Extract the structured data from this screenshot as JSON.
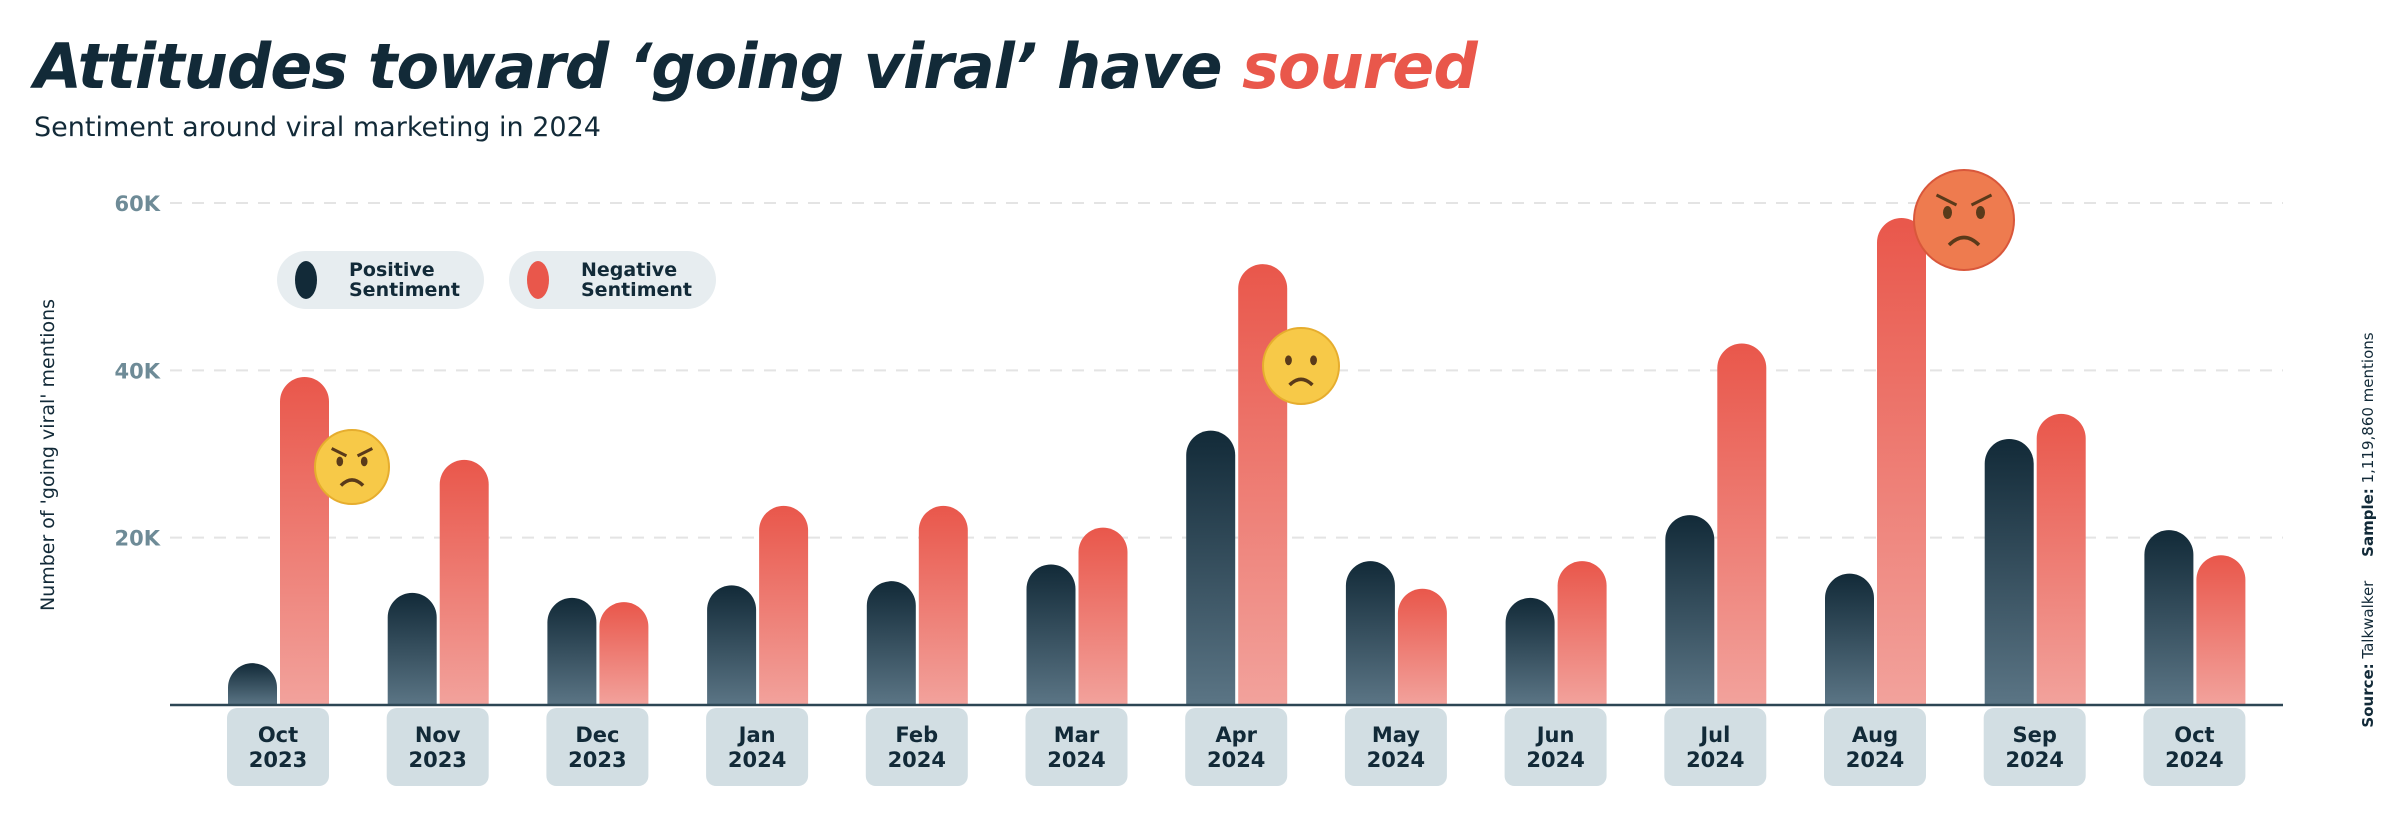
{
  "title": {
    "main": "Attitudes toward ‘going viral’ have ",
    "accent": "soured"
  },
  "subtitle": "Sentiment around viral marketing in 2024",
  "colors": {
    "positive": "#122a38",
    "negative": "#e9574b",
    "accent": "#e9574b",
    "label_box": "#d2dee3",
    "legend_bg": "#e7edf0"
  },
  "legend": [
    {
      "label": "Positive\nSentiment",
      "color": "#122a38"
    },
    {
      "label": "Negative\nSentiment",
      "color": "#e9574b"
    }
  ],
  "source": {
    "source_label": "Source:",
    "source_value": "Talkwalker",
    "sample_label": "Sample:",
    "sample_value": "1,119,860 mentions"
  },
  "chart_data": {
    "type": "bar",
    "title": "Attitudes toward ‘going viral’ have soured",
    "subtitle": "Sentiment around viral marketing in 2024",
    "ylabel": "Number of 'going viral' mentions",
    "xlabel": "",
    "ylim": [
      0,
      60000
    ],
    "yticks": [
      {
        "value": 20000,
        "label": "20K"
      },
      {
        "value": 40000,
        "label": "40K"
      },
      {
        "value": 60000,
        "label": "60K"
      }
    ],
    "grid": true,
    "legend_placement": "top-left",
    "categories": [
      [
        "Oct",
        "2023"
      ],
      [
        "Nov",
        "2023"
      ],
      [
        "Dec",
        "2023"
      ],
      [
        "Jan",
        "2024"
      ],
      [
        "Feb",
        "2024"
      ],
      [
        "Mar",
        "2024"
      ],
      [
        "Apr",
        "2024"
      ],
      [
        "May",
        "2024"
      ],
      [
        "Jun",
        "2024"
      ],
      [
        "Jul",
        "2024"
      ],
      [
        "Aug",
        "2024"
      ],
      [
        "Sep",
        "2024"
      ],
      [
        "Oct",
        "2024"
      ]
    ],
    "series": [
      {
        "name": "Positive Sentiment",
        "values": [
          5000,
          13400,
          12800,
          14300,
          14800,
          16800,
          32800,
          17200,
          12800,
          22700,
          15700,
          31800,
          20900
        ]
      },
      {
        "name": "Negative Sentiment",
        "values": [
          39200,
          29300,
          12300,
          23800,
          23800,
          21200,
          52700,
          13900,
          17200,
          43200,
          58200,
          34800,
          17900
        ]
      }
    ],
    "annotations": [
      {
        "category_index": 0,
        "icon": "unamused-face-emoji"
      },
      {
        "category_index": 6,
        "icon": "slightly-frowning-face-emoji"
      },
      {
        "category_index": 10,
        "icon": "angry-face-emoji"
      }
    ]
  }
}
